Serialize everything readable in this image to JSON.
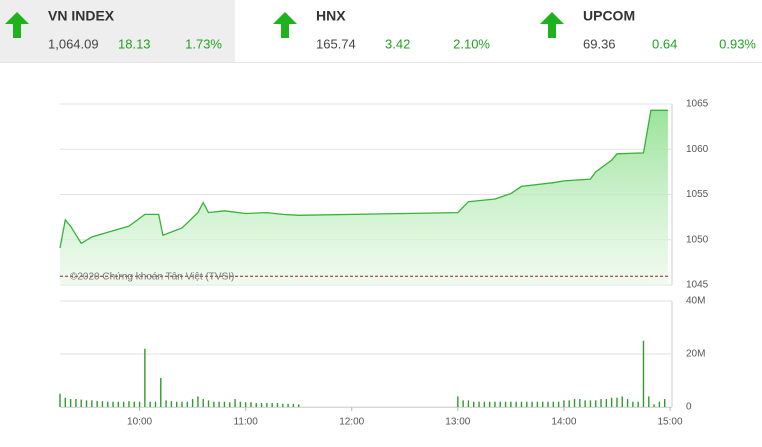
{
  "indices": [
    {
      "name": "VN INDEX",
      "value": "1,064.09",
      "change": "18.13",
      "percent": "1.73%"
    },
    {
      "name": "HNX",
      "value": "165.74",
      "change": "3.42",
      "percent": "2.10%"
    },
    {
      "name": "UPCOM",
      "value": "69.36",
      "change": "0.64",
      "percent": "0.93%"
    }
  ],
  "chart_data": [
    {
      "type": "area",
      "annotation": "©2020 Chứng khoán Tân Việt (TVSI)",
      "color": "#36b336",
      "reference_line": 1045.96,
      "reference_color": "#a02020",
      "x": [
        9.25,
        9.3,
        9.35,
        9.45,
        9.55,
        9.75,
        9.9,
        10.05,
        10.18,
        10.22,
        10.4,
        10.55,
        10.6,
        10.65,
        10.8,
        11,
        11.2,
        11.35,
        11.5,
        13.0,
        13.1,
        13.35,
        13.5,
        13.6,
        13.9,
        14.0,
        14.25,
        14.3,
        14.45,
        14.5,
        14.75,
        14.82,
        14.98
      ],
      "values": [
        1049.1,
        1052.2,
        1051.5,
        1049.6,
        1050.3,
        1051,
        1051.5,
        1052.8,
        1052.8,
        1050.5,
        1051.3,
        1053,
        1054.1,
        1053,
        1053.2,
        1052.9,
        1053,
        1052.8,
        1052.7,
        1053,
        1054.2,
        1054.5,
        1055.1,
        1055.9,
        1056.3,
        1056.5,
        1056.7,
        1057.5,
        1058.8,
        1059.5,
        1059.6,
        1064.3,
        1064.3
      ],
      "xlim": [
        9.25,
        15
      ],
      "ylim": [
        1045,
        1065
      ],
      "yticks": [
        1045,
        1050,
        1055,
        1060,
        1065
      ],
      "grid": true
    },
    {
      "type": "bar",
      "color": "#2f9a2f",
      "x": [
        9.25,
        9.3,
        9.35,
        9.4,
        9.45,
        9.5,
        9.55,
        9.6,
        9.65,
        9.7,
        9.75,
        9.8,
        9.85,
        9.9,
        9.95,
        10.0,
        10.05,
        10.1,
        10.15,
        10.2,
        10.25,
        10.3,
        10.35,
        10.4,
        10.45,
        10.5,
        10.55,
        10.6,
        10.65,
        10.7,
        10.75,
        10.8,
        10.85,
        10.9,
        10.95,
        11.0,
        11.05,
        11.1,
        11.15,
        11.2,
        11.25,
        11.3,
        11.35,
        11.4,
        11.45,
        11.5,
        13.0,
        13.05,
        13.1,
        13.15,
        13.2,
        13.25,
        13.3,
        13.35,
        13.4,
        13.45,
        13.5,
        13.55,
        13.6,
        13.65,
        13.7,
        13.75,
        13.8,
        13.85,
        13.9,
        13.95,
        14.0,
        14.05,
        14.1,
        14.15,
        14.2,
        14.25,
        14.3,
        14.35,
        14.4,
        14.45,
        14.5,
        14.55,
        14.6,
        14.65,
        14.7,
        14.75,
        14.8,
        14.85,
        14.9,
        14.95
      ],
      "values": [
        5,
        3.5,
        3,
        3,
        2.8,
        2.5,
        2.5,
        2.3,
        2.2,
        2,
        2,
        2,
        2,
        2.2,
        2,
        2,
        22,
        2,
        2,
        11,
        2.5,
        2.2,
        2,
        2,
        2,
        3,
        4,
        3,
        2.5,
        2,
        2,
        2,
        1.8,
        3,
        2,
        1.8,
        1.8,
        1.5,
        1.5,
        1.5,
        1.5,
        1.5,
        1.2,
        1.2,
        1.2,
        1,
        4,
        2.5,
        2.5,
        2,
        2,
        2,
        2,
        2,
        2,
        2,
        2,
        2,
        2,
        2,
        2,
        2,
        2,
        2,
        2,
        2,
        2.5,
        2.5,
        3,
        3,
        2.5,
        2.5,
        2.5,
        3,
        3,
        3.5,
        3.5,
        4,
        3,
        2,
        2,
        25,
        4,
        1,
        2,
        3
      ],
      "xlim": [
        9.25,
        15
      ],
      "ylim": [
        0,
        40
      ],
      "yticks": [
        0,
        {
          "value": 20,
          "label": "20M"
        },
        {
          "value": 40,
          "label": "40M"
        }
      ],
      "xticks": [
        {
          "value": 10,
          "label": "10:00"
        },
        {
          "value": 11,
          "label": "11:00"
        },
        {
          "value": 12,
          "label": "12:00"
        },
        {
          "value": 13,
          "label": "13:00"
        },
        {
          "value": 14,
          "label": "14:00"
        },
        {
          "value": 15,
          "label": "15:00"
        }
      ],
      "grid": true
    }
  ]
}
